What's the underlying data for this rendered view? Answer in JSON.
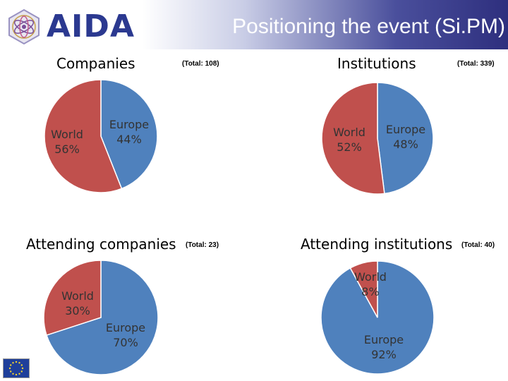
{
  "header": {
    "logo_text": "AIDA",
    "title": "Positioning the event (Si.PM)"
  },
  "colors": {
    "europe": "#4f81bd",
    "world": "#c0504d",
    "header_dark": "#2e2f7e"
  },
  "icons": {
    "logo": "aida-logo-icon",
    "flag": "eu-flag-icon"
  },
  "chart_data": [
    {
      "type": "pie",
      "title": "Companies",
      "total_label": "(Total: 108)",
      "slices": [
        {
          "name": "Europe",
          "percent": 44,
          "label": "44%"
        },
        {
          "name": "World",
          "percent": 56,
          "label": "56%"
        }
      ]
    },
    {
      "type": "pie",
      "title": "Institutions",
      "total_label": "(Total: 339)",
      "slices": [
        {
          "name": "Europe",
          "percent": 48,
          "label": "48%"
        },
        {
          "name": "World",
          "percent": 52,
          "label": "52%"
        }
      ]
    },
    {
      "type": "pie",
      "title": "Attending companies",
      "total_label": "(Total: 23)",
      "slices": [
        {
          "name": "Europe",
          "percent": 70,
          "label": "70%"
        },
        {
          "name": "World",
          "percent": 30,
          "label": "30%"
        }
      ]
    },
    {
      "type": "pie",
      "title": "Attending institutions",
      "total_label": "(Total: 40)",
      "slices": [
        {
          "name": "Europe",
          "percent": 92,
          "label": "92%"
        },
        {
          "name": "World",
          "percent": 8,
          "label": "8%"
        }
      ]
    }
  ]
}
